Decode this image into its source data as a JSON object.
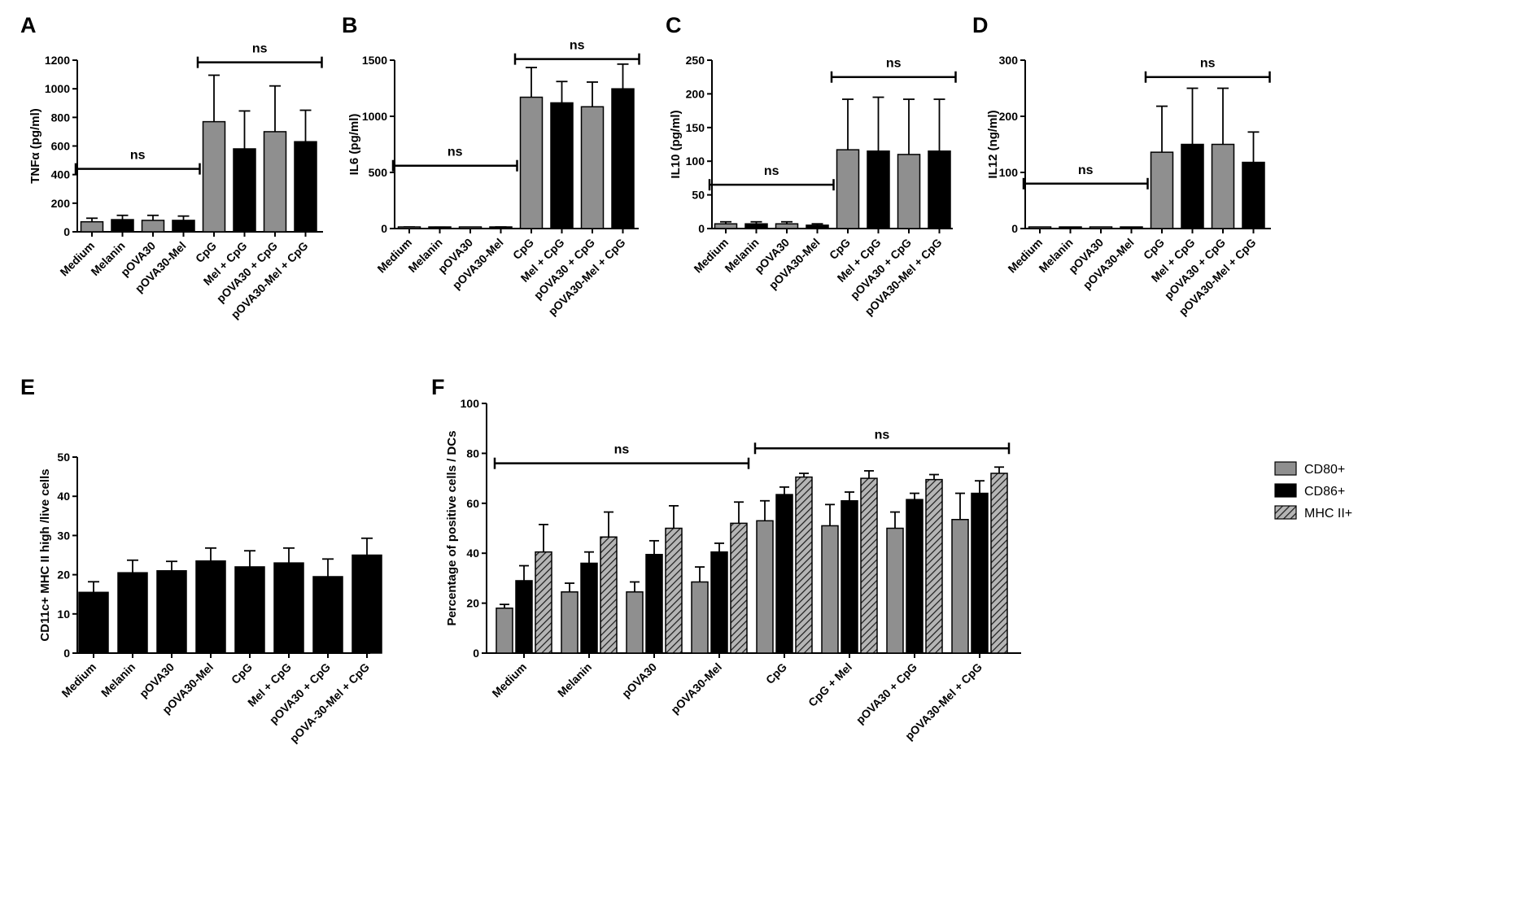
{
  "colors": {
    "gray": "#8f8f8f",
    "black": "#000000",
    "axis": "#000000"
  },
  "icons": {
    "hatch": "diagonal-hatch-pattern"
  },
  "chart_data": [
    {
      "panel": "A",
      "type": "bar",
      "ylabel": "TNFα (pg/ml)",
      "ylim": [
        0,
        1200
      ],
      "yticks": [
        0,
        200,
        400,
        600,
        800,
        1000,
        1200
      ],
      "categories": [
        "Medium",
        "Melanin",
        "pOVA30",
        "pOVA30-Mel",
        "CpG",
        "Mel + CpG",
        "pOVA30 + CpG",
        "pOVA30-Mel + CpG"
      ],
      "values": [
        70,
        85,
        80,
        80,
        770,
        580,
        700,
        630
      ],
      "errors": [
        25,
        30,
        35,
        30,
        325,
        265,
        320,
        220
      ],
      "bar_colors": [
        "gray",
        "black",
        "gray",
        "black",
        "gray",
        "black",
        "gray",
        "black"
      ],
      "annotations": [
        {
          "text": "ns",
          "from": 0,
          "to": 3,
          "y": 440
        },
        {
          "text": "ns",
          "from": 4,
          "to": 7,
          "y": 1185
        }
      ]
    },
    {
      "panel": "B",
      "type": "bar",
      "ylabel": "IL6 (pg/ml)",
      "ylim": [
        0,
        1500
      ],
      "yticks": [
        0,
        500,
        1000,
        1500
      ],
      "categories": [
        "Medium",
        "Melanin",
        "pOVA30",
        "pOVA30-Mel",
        "CpG",
        "Mel + CpG",
        "pOVA30 + CpG",
        "pOVA30-Mel + CpG"
      ],
      "values": [
        10,
        8,
        5,
        10,
        1170,
        1120,
        1085,
        1245
      ],
      "errors": [
        4,
        4,
        3,
        4,
        265,
        190,
        220,
        220
      ],
      "bar_colors": [
        "gray",
        "black",
        "gray",
        "black",
        "gray",
        "black",
        "gray",
        "black"
      ],
      "annotations": [
        {
          "text": "ns",
          "from": 0,
          "to": 3,
          "y": 560
        },
        {
          "text": "ns",
          "from": 4,
          "to": 7,
          "y": 1510
        }
      ]
    },
    {
      "panel": "C",
      "type": "bar",
      "ylabel": "IL10 (pg/ml)",
      "ylim": [
        0,
        250
      ],
      "yticks": [
        0,
        50,
        100,
        150,
        200,
        250
      ],
      "categories": [
        "Medium",
        "Melanin",
        "pOVA30",
        "pOVA30-Mel",
        "CpG",
        "Mel + CpG",
        "pOVA30 + CpG",
        "pOVA30-Mel + CpG"
      ],
      "values": [
        7,
        7,
        7,
        5,
        117,
        115,
        110,
        115
      ],
      "errors": [
        3,
        3,
        3,
        2,
        75,
        80,
        82,
        77
      ],
      "bar_colors": [
        "gray",
        "black",
        "gray",
        "black",
        "gray",
        "black",
        "gray",
        "black"
      ],
      "annotations": [
        {
          "text": "ns",
          "from": 0,
          "to": 3,
          "y": 65
        },
        {
          "text": "ns",
          "from": 4,
          "to": 7,
          "y": 225
        }
      ]
    },
    {
      "panel": "D",
      "type": "bar",
      "ylabel": "IL12 (ng/ml)",
      "ylim": [
        0,
        300
      ],
      "yticks": [
        0,
        100,
        200,
        300
      ],
      "categories": [
        "Medium",
        "Melanin",
        "pOVA30",
        "pOVA30-Mel",
        "CpG",
        "Mel + CpG",
        "pOVA30 + CpG",
        "pOVA30-Mel + CpG"
      ],
      "values": [
        1,
        1,
        1,
        1,
        136,
        150,
        150,
        118
      ],
      "errors": [
        0,
        0,
        0,
        0,
        82,
        100,
        100,
        54
      ],
      "bar_colors": [
        "gray",
        "black",
        "gray",
        "black",
        "gray",
        "black",
        "gray",
        "black"
      ],
      "annotations": [
        {
          "text": "ns",
          "from": 0,
          "to": 3,
          "y": 80
        },
        {
          "text": "ns",
          "from": 4,
          "to": 7,
          "y": 270
        }
      ]
    },
    {
      "panel": "E",
      "type": "bar",
      "ylabel": "CD11c+ MHC  II high /live cells",
      "ylim": [
        0,
        50
      ],
      "yticks": [
        0,
        10,
        20,
        30,
        40,
        50
      ],
      "categories": [
        "Medium",
        "Melanin",
        "pOVA30",
        "pOVA30-Mel",
        "CpG",
        "Mel + CpG",
        "pOVA30 + CpG",
        "pOVA-30-Mel + CpG"
      ],
      "values": [
        15.5,
        20.5,
        21,
        23.5,
        22,
        23,
        19.5,
        25
      ],
      "errors": [
        2.7,
        3.2,
        2.4,
        3.3,
        4.1,
        3.8,
        4.5,
        4.3
      ],
      "bar_colors": [
        "black",
        "black",
        "black",
        "black",
        "black",
        "black",
        "black",
        "black"
      ],
      "annotations": []
    },
    {
      "panel": "F",
      "type": "bar",
      "ylabel": "Percentage of positive cells / DCs",
      "ylim": [
        0,
        100
      ],
      "yticks": [
        0,
        20,
        40,
        60,
        80,
        100
      ],
      "categories": [
        "Medium",
        "Melanin",
        "pOVA30",
        "pOVA30-Mel",
        "CpG",
        "CpG + Mel",
        "pOVA30 + CpG",
        "pOVA30-Mel + CpG"
      ],
      "series": [
        {
          "name": "CD80+",
          "fill": "gray",
          "values": [
            18,
            24.5,
            24.5,
            28.5,
            53,
            51,
            50,
            53.5
          ],
          "errors": [
            1.5,
            3.5,
            4,
            6,
            8,
            8.5,
            6.5,
            10.5
          ]
        },
        {
          "name": "CD86+",
          "fill": "black",
          "values": [
            29,
            36,
            39.5,
            40.5,
            63.5,
            61,
            61.5,
            64
          ],
          "errors": [
            6,
            4.5,
            5.5,
            3.5,
            3,
            3.5,
            2.5,
            5
          ]
        },
        {
          "name": "MHC II+",
          "fill": "hatch",
          "values": [
            40.5,
            46.5,
            50,
            52,
            70.5,
            70,
            69.5,
            72
          ],
          "errors": [
            11,
            10,
            9,
            8.5,
            1.5,
            3,
            2,
            2.5
          ]
        }
      ],
      "legend": "top-right",
      "annotations": [
        {
          "text": "ns",
          "from": 0,
          "to": 3,
          "y": 76
        },
        {
          "text": "ns",
          "from": 4,
          "to": 7,
          "y": 82
        }
      ]
    }
  ]
}
